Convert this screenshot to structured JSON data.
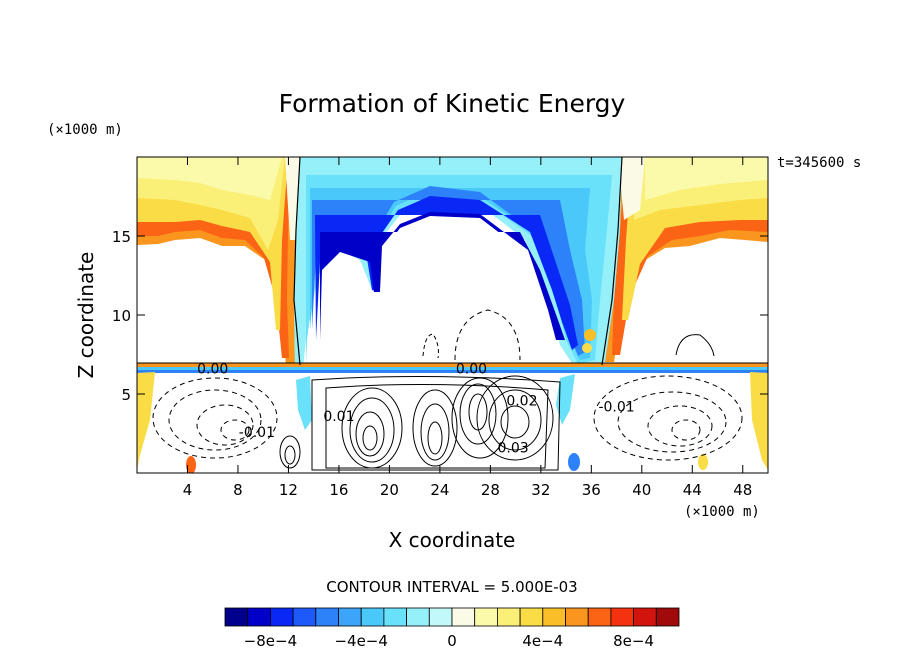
{
  "chart_data": {
    "type": "heatmap",
    "title": "Formation of Kinetic Energy",
    "xlabel": "X coordinate",
    "ylabel": "Z coordinate",
    "x_unit": "(×1000 m)",
    "z_unit": "(×1000 m)",
    "time_label": "t=345600 s",
    "xlim": [
      0,
      50
    ],
    "ylim": [
      0,
      20
    ],
    "x_ticks": [
      4,
      8,
      12,
      16,
      20,
      24,
      28,
      32,
      36,
      40,
      44,
      48
    ],
    "y_ticks": [
      5,
      10,
      15
    ],
    "contour_interval_text": "CONTOUR INTERVAL = 5.000E-03",
    "contour_labels": [
      {
        "x": 6,
        "z": 6.6,
        "text": "0.00"
      },
      {
        "x": 26.5,
        "z": 6.6,
        "text": "0.00"
      },
      {
        "x": 16,
        "z": 3.6,
        "text": "0.01"
      },
      {
        "x": 30.5,
        "z": 4.6,
        "text": "0.02"
      },
      {
        "x": 29.8,
        "z": 1.6,
        "text": "0.03"
      },
      {
        "x": 38,
        "z": 4.2,
        "text": "-0.01"
      },
      {
        "x": 9.5,
        "z": 2.6,
        "text": "-0.01"
      }
    ],
    "colorbar": {
      "range": [
        -0.001,
        0.001
      ],
      "levels": 20,
      "colors": [
        "#00008c",
        "#0000c8",
        "#0a28f5",
        "#1e5afa",
        "#2d82fa",
        "#3ca5fa",
        "#4bc8fa",
        "#69e1fa",
        "#96f0fa",
        "#c3f8fa",
        "#fafae6",
        "#fafaaa",
        "#faf078",
        "#fadc46",
        "#fabe28",
        "#fa961e",
        "#fa6414",
        "#f5320f",
        "#d2140f",
        "#a00a0a"
      ],
      "tick_values": [
        -0.0008,
        -0.0004,
        0,
        0.0004,
        0.0008
      ],
      "tick_labels": [
        "−8e−4",
        "−4e−4",
        "0",
        "4e−4",
        "8e−4"
      ]
    }
  }
}
